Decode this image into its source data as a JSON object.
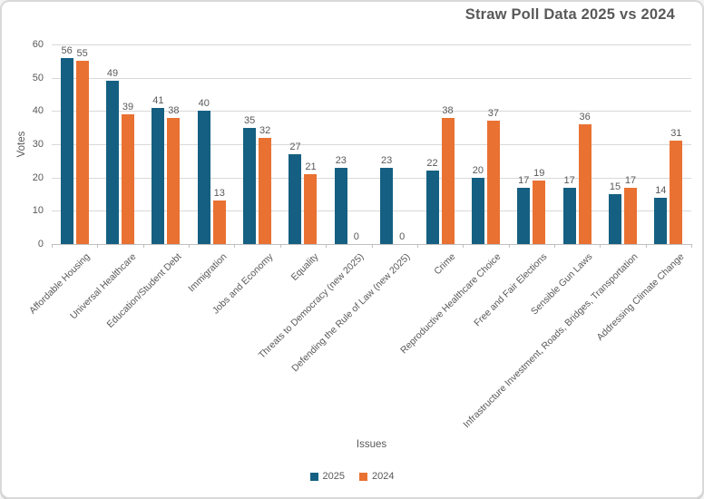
{
  "chart_data": {
    "type": "bar",
    "title": "Straw Poll Data 2025 vs 2024",
    "xlabel": "Issues",
    "ylabel": "Votes",
    "ylim": [
      0,
      60
    ],
    "yticks": [
      0,
      10,
      20,
      30,
      40,
      50,
      60
    ],
    "grid": true,
    "data_labels": true,
    "legend_position": "bottom",
    "categories": [
      "Affordable Housing",
      "Universal Healthcare",
      "Education/Student Debt",
      "Immigration",
      "Jobs and Economy",
      "Equality",
      "Threats to Democracy (new 2025)",
      "Defending the Rule of Law (new 2025)",
      "Crime",
      "Reproductive Healthcare Choice",
      "Free and Fair Elections",
      "Sensible Gun Laws",
      "Infrastructure Investment, Roads, Bridges, Transportation",
      "Addressing Climate Change"
    ],
    "series": [
      {
        "name": "2025",
        "color": "#156082",
        "values": [
          56,
          49,
          41,
          40,
          35,
          27,
          23,
          23,
          22,
          20,
          17,
          17,
          15,
          14
        ]
      },
      {
        "name": "2024",
        "color": "#E97132",
        "values": [
          55,
          39,
          38,
          13,
          32,
          21,
          0,
          0,
          38,
          37,
          19,
          36,
          17,
          31
        ]
      }
    ],
    "colors": {
      "text": "#595959",
      "gridline": "#D9D9D9",
      "axis": "#BFBFBF",
      "border": "#D9D9D9"
    }
  }
}
